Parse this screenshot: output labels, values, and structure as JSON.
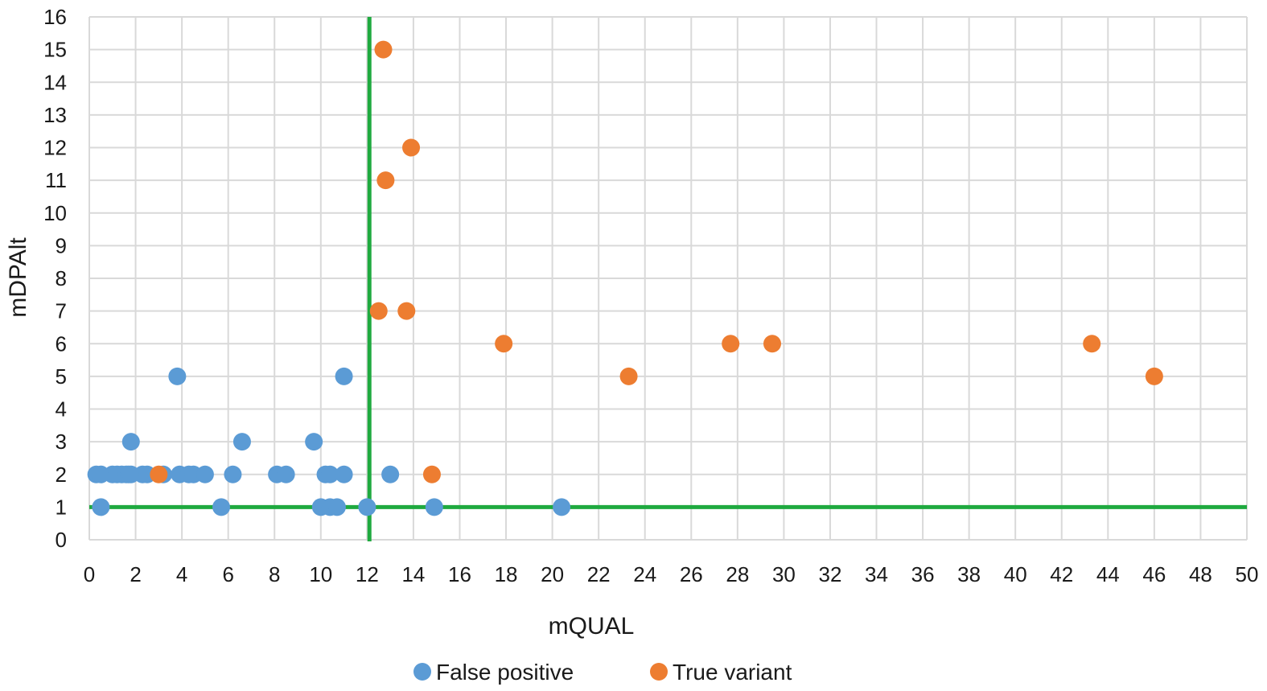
{
  "chart_data": {
    "type": "scatter",
    "title": "",
    "xlabel": "mQUAL",
    "ylabel": "mDPAlt",
    "xlim": [
      0,
      50
    ],
    "ylim": [
      0,
      16
    ],
    "x_ticks": [
      0,
      2,
      4,
      6,
      8,
      10,
      12,
      14,
      16,
      18,
      20,
      22,
      24,
      26,
      28,
      30,
      32,
      34,
      36,
      38,
      40,
      42,
      44,
      46,
      48,
      50
    ],
    "y_ticks": [
      0,
      1,
      2,
      3,
      4,
      5,
      6,
      7,
      8,
      9,
      10,
      11,
      12,
      13,
      14,
      15,
      16
    ],
    "grid": true,
    "legend_position": "bottom",
    "threshold_lines": {
      "color": "#1faa3f",
      "vertical_x": 12.1,
      "horizontal_y": 1
    },
    "series": [
      {
        "name": "False positive",
        "color": "#5b9bd5",
        "points": [
          [
            0.3,
            2
          ],
          [
            0.5,
            2
          ],
          [
            0.5,
            1
          ],
          [
            1.0,
            2
          ],
          [
            1.2,
            2
          ],
          [
            1.4,
            2
          ],
          [
            1.6,
            2
          ],
          [
            1.7,
            2
          ],
          [
            1.8,
            3
          ],
          [
            1.8,
            2
          ],
          [
            2.3,
            2
          ],
          [
            2.5,
            2
          ],
          [
            3.2,
            2
          ],
          [
            3.8,
            5
          ],
          [
            3.9,
            2
          ],
          [
            4.3,
            2
          ],
          [
            4.5,
            2
          ],
          [
            5.0,
            2
          ],
          [
            5.7,
            1
          ],
          [
            6.2,
            2
          ],
          [
            6.6,
            3
          ],
          [
            8.1,
            2
          ],
          [
            8.5,
            2
          ],
          [
            9.7,
            3
          ],
          [
            10.0,
            1
          ],
          [
            10.2,
            2
          ],
          [
            10.4,
            2
          ],
          [
            10.4,
            1
          ],
          [
            10.7,
            1
          ],
          [
            11.0,
            2
          ],
          [
            11.0,
            5
          ],
          [
            12.0,
            1
          ],
          [
            13.0,
            2
          ],
          [
            14.9,
            1
          ],
          [
            20.4,
            1
          ]
        ]
      },
      {
        "name": "True variant",
        "color": "#ed7d31",
        "points": [
          [
            3.0,
            2
          ],
          [
            12.5,
            7
          ],
          [
            12.7,
            15
          ],
          [
            12.8,
            11
          ],
          [
            13.7,
            7
          ],
          [
            13.9,
            12
          ],
          [
            14.8,
            2
          ],
          [
            17.9,
            6
          ],
          [
            23.3,
            5
          ],
          [
            27.7,
            6
          ],
          [
            29.5,
            6
          ],
          [
            43.3,
            6
          ],
          [
            46.0,
            5
          ]
        ]
      }
    ]
  }
}
